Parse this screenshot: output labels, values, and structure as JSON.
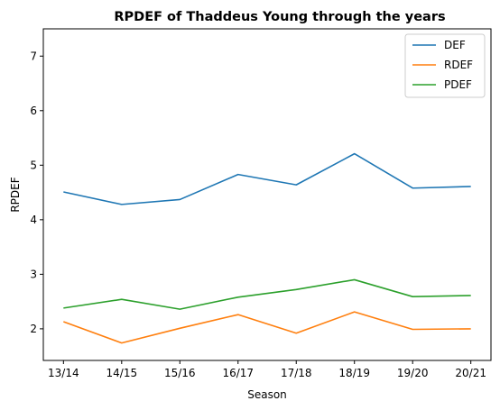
{
  "chart_data": {
    "type": "line",
    "title": "RPDEF of Thaddeus Young through the years",
    "xlabel": "Season",
    "ylabel": "RPDEF",
    "categories": [
      "13/14",
      "14/15",
      "15/16",
      "16/17",
      "17/18",
      "18/19",
      "19/20",
      "20/21"
    ],
    "ylim": [
      1.42,
      7.5
    ],
    "yticks": [
      2,
      3,
      4,
      5,
      6,
      7
    ],
    "grid": false,
    "legend_position": "top-right",
    "series": [
      {
        "name": "DEF",
        "color": "#1f77b4",
        "values": [
          4.51,
          4.28,
          4.37,
          4.83,
          4.64,
          5.21,
          4.58,
          4.61
        ]
      },
      {
        "name": "RDEF",
        "color": "#ff7f0e",
        "values": [
          2.13,
          1.74,
          2.01,
          2.26,
          1.92,
          2.31,
          1.99,
          2.0
        ]
      },
      {
        "name": "PDEF",
        "color": "#2ca02c",
        "values": [
          2.38,
          2.54,
          2.36,
          2.58,
          2.72,
          2.9,
          2.59,
          2.61
        ]
      }
    ]
  }
}
